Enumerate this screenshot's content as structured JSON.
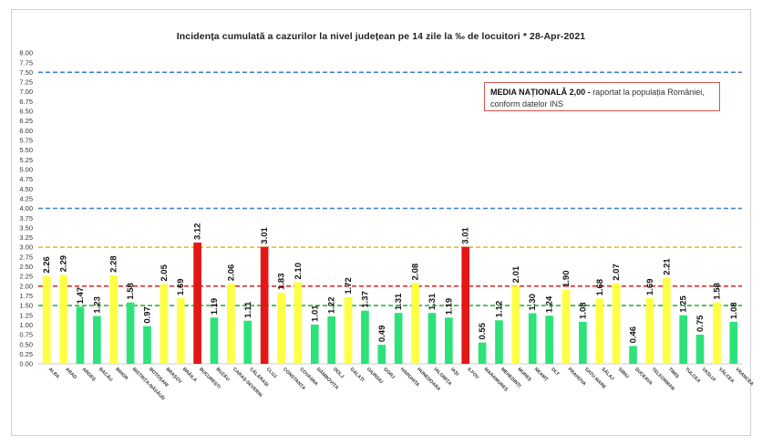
{
  "chart_data": {
    "type": "bar",
    "title": "Incidența cumulată a cazurilor la nivel județean pe 14 zile   la ‰ de locuitori  *   28-Apr-2021",
    "note": {
      "bold": "MEDIA NAȚIONALĂ 2,00 -",
      "text": " raportat la populația României, conform datelor INS"
    },
    "ylim": [
      0,
      8
    ],
    "yticks": [
      "0.00",
      "0.25",
      "0.50",
      "0.75",
      "1.00",
      "1.25",
      "1.50",
      "1.75",
      "2.00",
      "2.25",
      "2.50",
      "2.75",
      "3.00",
      "3.25",
      "3.50",
      "3.75",
      "4.00",
      "4.25",
      "4.50",
      "4.75",
      "5.00",
      "5.25",
      "5.50",
      "5.75",
      "6.00",
      "6.25",
      "6.50",
      "6.75",
      "7.00",
      "7.25",
      "7.50",
      "7.75",
      "8.00"
    ],
    "thresholds": [
      {
        "value": 7.5,
        "color": "#3a7fd0"
      },
      {
        "value": 4.0,
        "color": "#3a7fd0"
      },
      {
        "value": 3.0,
        "color": "#f0b020"
      },
      {
        "value": 2.0,
        "color": "#e02020"
      },
      {
        "value": 1.5,
        "color": "#30b040"
      }
    ],
    "colors": {
      "green": "#2ee27a",
      "yellow": "#ffff44",
      "red": "#e41616"
    },
    "categories": [
      "ALBA",
      "ARAD",
      "ARGEȘ",
      "BACĂU",
      "BIHOR",
      "BISTRIȚA-NĂSĂUD",
      "BOTOȘANI",
      "BRAȘOV",
      "BRĂILA",
      "BUCUREȘTI",
      "BUZĂU",
      "CARAȘ-SEVERIN",
      "CĂLĂRAȘI",
      "CLUJ",
      "CONSTANȚA",
      "COVASNA",
      "DÂMBOVIȚA",
      "DOLJ",
      "GALAȚI",
      "GIURGIU",
      "GORJ",
      "HARGHITA",
      "HUNEDOARA",
      "IALOMIȚA",
      "IAȘI",
      "ILFOV",
      "MARAMUREȘ",
      "MEHEDINȚI",
      "MUREȘ",
      "NEAMȚ",
      "OLT",
      "PRAHOVA",
      "SATU MARE",
      "SĂLAJ",
      "SIBIU",
      "SUCEAVA",
      "TELEORMAN",
      "TIMIȘ",
      "TULCEA",
      "VASLUI",
      "VÂLCEA",
      "VRANCEA"
    ],
    "values": [
      2.26,
      2.29,
      1.47,
      1.23,
      2.28,
      1.58,
      0.97,
      2.05,
      1.69,
      3.12,
      1.19,
      2.06,
      1.11,
      3.01,
      1.83,
      2.1,
      1.01,
      1.22,
      1.72,
      1.37,
      0.49,
      1.31,
      2.08,
      1.31,
      1.19,
      3.01,
      0.55,
      1.12,
      2.01,
      1.3,
      1.24,
      1.9,
      1.08,
      1.68,
      2.07,
      0.46,
      1.69,
      2.21,
      1.25,
      0.75,
      1.58,
      1.08
    ],
    "labels": [
      "2.26",
      "2.29",
      "1.47",
      "1.23",
      "2.28",
      "1.58",
      "0.97",
      "2.05",
      "1.69",
      "3.12",
      "1.19",
      "2.06",
      "1.11",
      "3.01",
      "1.83",
      "2.10",
      "1.01",
      "1.22",
      "1.72",
      "1.37",
      "0.49",
      "1.31",
      "2.08",
      "1.31",
      "1.19",
      "3.01",
      "0.55",
      "1.12",
      "2.01",
      "1.30",
      "1.24",
      "1.90",
      "1.08",
      "1.68",
      "2.07",
      "0.46",
      "1.69",
      "2.21",
      "1.25",
      "0.75",
      "1.58",
      "1.08"
    ],
    "bar_colors": [
      "yellow",
      "yellow",
      "green",
      "green",
      "yellow",
      "green",
      "green",
      "yellow",
      "yellow",
      "red",
      "green",
      "yellow",
      "green",
      "red",
      "yellow",
      "yellow",
      "green",
      "green",
      "yellow",
      "green",
      "green",
      "green",
      "yellow",
      "green",
      "green",
      "red",
      "green",
      "green",
      "yellow",
      "green",
      "green",
      "yellow",
      "green",
      "yellow",
      "yellow",
      "green",
      "yellow",
      "yellow",
      "green",
      "green",
      "yellow",
      "green"
    ]
  }
}
